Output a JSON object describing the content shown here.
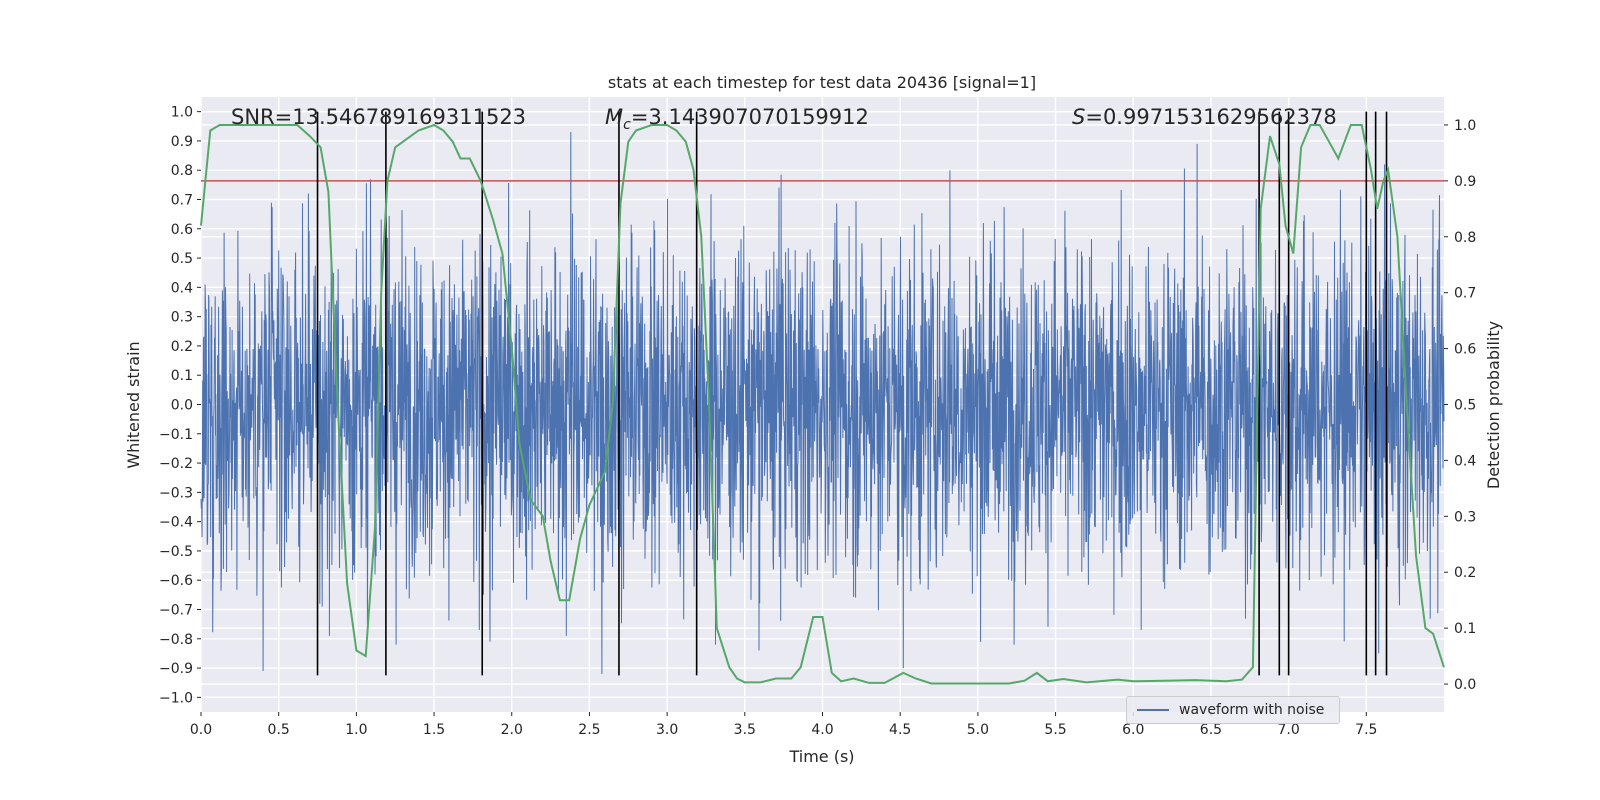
{
  "chart_data": {
    "type": "line",
    "title": "stats at each timestep for test data 20436 [signal=1]",
    "xlabel": "Time (s)",
    "ylabel_left": "Whitened strain",
    "ylabel_right": "Detection probability",
    "xlim": [
      0.0,
      8.0
    ],
    "ylim_left": [
      -1.05,
      1.05
    ],
    "ylim_right": [
      -0.05,
      1.05
    ],
    "x_ticks": [
      "0.0",
      "0.5",
      "1.0",
      "1.5",
      "2.0",
      "2.5",
      "3.0",
      "3.5",
      "4.0",
      "4.5",
      "5.0",
      "5.5",
      "6.0",
      "6.5",
      "7.0",
      "7.5"
    ],
    "y_ticks_left": [
      "-1.0",
      "-0.9",
      "-0.8",
      "-0.7",
      "-0.6",
      "-0.5",
      "-0.4",
      "-0.3",
      "-0.2",
      "-0.1",
      "0.0",
      "0.1",
      "0.2",
      "0.3",
      "0.4",
      "0.5",
      "0.6",
      "0.7",
      "0.8",
      "0.9",
      "1.0"
    ],
    "y_ticks_right": [
      "0.0",
      "0.1",
      "0.2",
      "0.3",
      "0.4",
      "0.5",
      "0.6",
      "0.7",
      "0.8",
      "0.9",
      "1.0"
    ],
    "annotations": {
      "snr": "SNR=13.546789169311523",
      "mc_symbol": "M",
      "mc_sub": "c",
      "mc_value": "=3.143907070159912",
      "s_symbol": "S",
      "s_value": "=0.9971531629562378"
    },
    "threshold": {
      "value": 0.9,
      "axis": "right",
      "color": "#c44e52"
    },
    "detection_markers": [
      0.75,
      1.19,
      1.81,
      2.69,
      3.19,
      6.81,
      6.94,
      7.0,
      7.5,
      7.56,
      7.63
    ],
    "series": [
      {
        "name": "waveform with noise",
        "axis": "left",
        "color": "#4c72b0",
        "style": "noise",
        "typical_amplitude": 0.45,
        "spike_peaks": [
          {
            "t": 0.4,
            "v": -0.91
          },
          {
            "t": 0.69,
            "v": 0.72
          },
          {
            "t": 0.78,
            "v": -0.69
          },
          {
            "t": 1.07,
            "v": -0.75
          },
          {
            "t": 1.79,
            "v": -0.77
          },
          {
            "t": 1.86,
            "v": -0.81
          },
          {
            "t": 2.38,
            "v": 0.93
          },
          {
            "t": 2.35,
            "v": -0.79
          },
          {
            "t": 2.58,
            "v": -0.92
          },
          {
            "t": 3.19,
            "v": 0.92
          },
          {
            "t": 3.59,
            "v": -0.84
          },
          {
            "t": 3.72,
            "v": 0.74
          },
          {
            "t": 4.52,
            "v": -0.9
          },
          {
            "t": 4.82,
            "v": 0.8
          },
          {
            "t": 6.41,
            "v": 0.89
          },
          {
            "t": 6.05,
            "v": -0.77
          },
          {
            "t": 7.5,
            "v": 0.74
          },
          {
            "t": 7.58,
            "v": -0.85
          }
        ]
      },
      {
        "name": "detection probability",
        "axis": "right",
        "color": "#55a868",
        "points": [
          [
            0.0,
            0.82
          ],
          [
            0.06,
            0.99
          ],
          [
            0.12,
            1.0
          ],
          [
            0.25,
            1.0
          ],
          [
            0.5,
            1.0
          ],
          [
            0.62,
            1.0
          ],
          [
            0.7,
            0.98
          ],
          [
            0.77,
            0.96
          ],
          [
            0.82,
            0.88
          ],
          [
            0.88,
            0.5
          ],
          [
            0.94,
            0.18
          ],
          [
            1.0,
            0.06
          ],
          [
            1.06,
            0.05
          ],
          [
            1.12,
            0.28
          ],
          [
            1.16,
            0.7
          ],
          [
            1.2,
            0.9
          ],
          [
            1.25,
            0.96
          ],
          [
            1.3,
            0.97
          ],
          [
            1.4,
            0.99
          ],
          [
            1.5,
            1.0
          ],
          [
            1.56,
            0.99
          ],
          [
            1.62,
            0.97
          ],
          [
            1.67,
            0.94
          ],
          [
            1.73,
            0.94
          ],
          [
            1.8,
            0.9
          ],
          [
            1.88,
            0.83
          ],
          [
            1.94,
            0.77
          ],
          [
            2.0,
            0.6
          ],
          [
            2.05,
            0.43
          ],
          [
            2.12,
            0.33
          ],
          [
            2.2,
            0.3
          ],
          [
            2.25,
            0.22
          ],
          [
            2.31,
            0.15
          ],
          [
            2.37,
            0.15
          ],
          [
            2.44,
            0.26
          ],
          [
            2.5,
            0.32
          ],
          [
            2.6,
            0.38
          ],
          [
            2.65,
            0.5
          ],
          [
            2.7,
            0.86
          ],
          [
            2.75,
            0.97
          ],
          [
            2.8,
            0.99
          ],
          [
            2.9,
            1.0
          ],
          [
            3.0,
            1.0
          ],
          [
            3.06,
            0.99
          ],
          [
            3.12,
            0.97
          ],
          [
            3.17,
            0.92
          ],
          [
            3.22,
            0.8
          ],
          [
            3.27,
            0.5
          ],
          [
            3.32,
            0.1
          ],
          [
            3.4,
            0.03
          ],
          [
            3.45,
            0.01
          ],
          [
            3.5,
            0.003
          ],
          [
            3.6,
            0.003
          ],
          [
            3.7,
            0.01
          ],
          [
            3.8,
            0.01
          ],
          [
            3.86,
            0.03
          ],
          [
            3.94,
            0.12
          ],
          [
            4.0,
            0.12
          ],
          [
            4.06,
            0.02
          ],
          [
            4.12,
            0.005
          ],
          [
            4.2,
            0.01
          ],
          [
            4.3,
            0.002
          ],
          [
            4.4,
            0.002
          ],
          [
            4.52,
            0.02
          ],
          [
            4.6,
            0.01
          ],
          [
            4.7,
            0.001
          ],
          [
            5.0,
            0.001
          ],
          [
            5.2,
            0.001
          ],
          [
            5.3,
            0.006
          ],
          [
            5.38,
            0.02
          ],
          [
            5.45,
            0.005
          ],
          [
            5.55,
            0.009
          ],
          [
            5.7,
            0.003
          ],
          [
            5.9,
            0.008
          ],
          [
            6.0,
            0.005
          ],
          [
            6.2,
            0.006
          ],
          [
            6.4,
            0.007
          ],
          [
            6.6,
            0.005
          ],
          [
            6.7,
            0.008
          ],
          [
            6.77,
            0.03
          ],
          [
            6.82,
            0.85
          ],
          [
            6.88,
            0.98
          ],
          [
            6.94,
            0.93
          ],
          [
            6.98,
            0.82
          ],
          [
            7.03,
            0.77
          ],
          [
            7.08,
            0.96
          ],
          [
            7.14,
            1.0
          ],
          [
            7.2,
            1.0
          ],
          [
            7.26,
            0.97
          ],
          [
            7.32,
            0.94
          ],
          [
            7.4,
            1.0
          ],
          [
            7.47,
            1.0
          ],
          [
            7.53,
            0.92
          ],
          [
            7.57,
            0.85
          ],
          [
            7.61,
            0.9
          ],
          [
            7.64,
            0.92
          ],
          [
            7.7,
            0.8
          ],
          [
            7.76,
            0.5
          ],
          [
            7.82,
            0.23
          ],
          [
            7.88,
            0.1
          ],
          [
            7.93,
            0.09
          ],
          [
            8.0,
            0.03
          ]
        ]
      }
    ],
    "legend": {
      "entries": [
        "waveform with noise"
      ],
      "placement": "bottom-right"
    }
  }
}
